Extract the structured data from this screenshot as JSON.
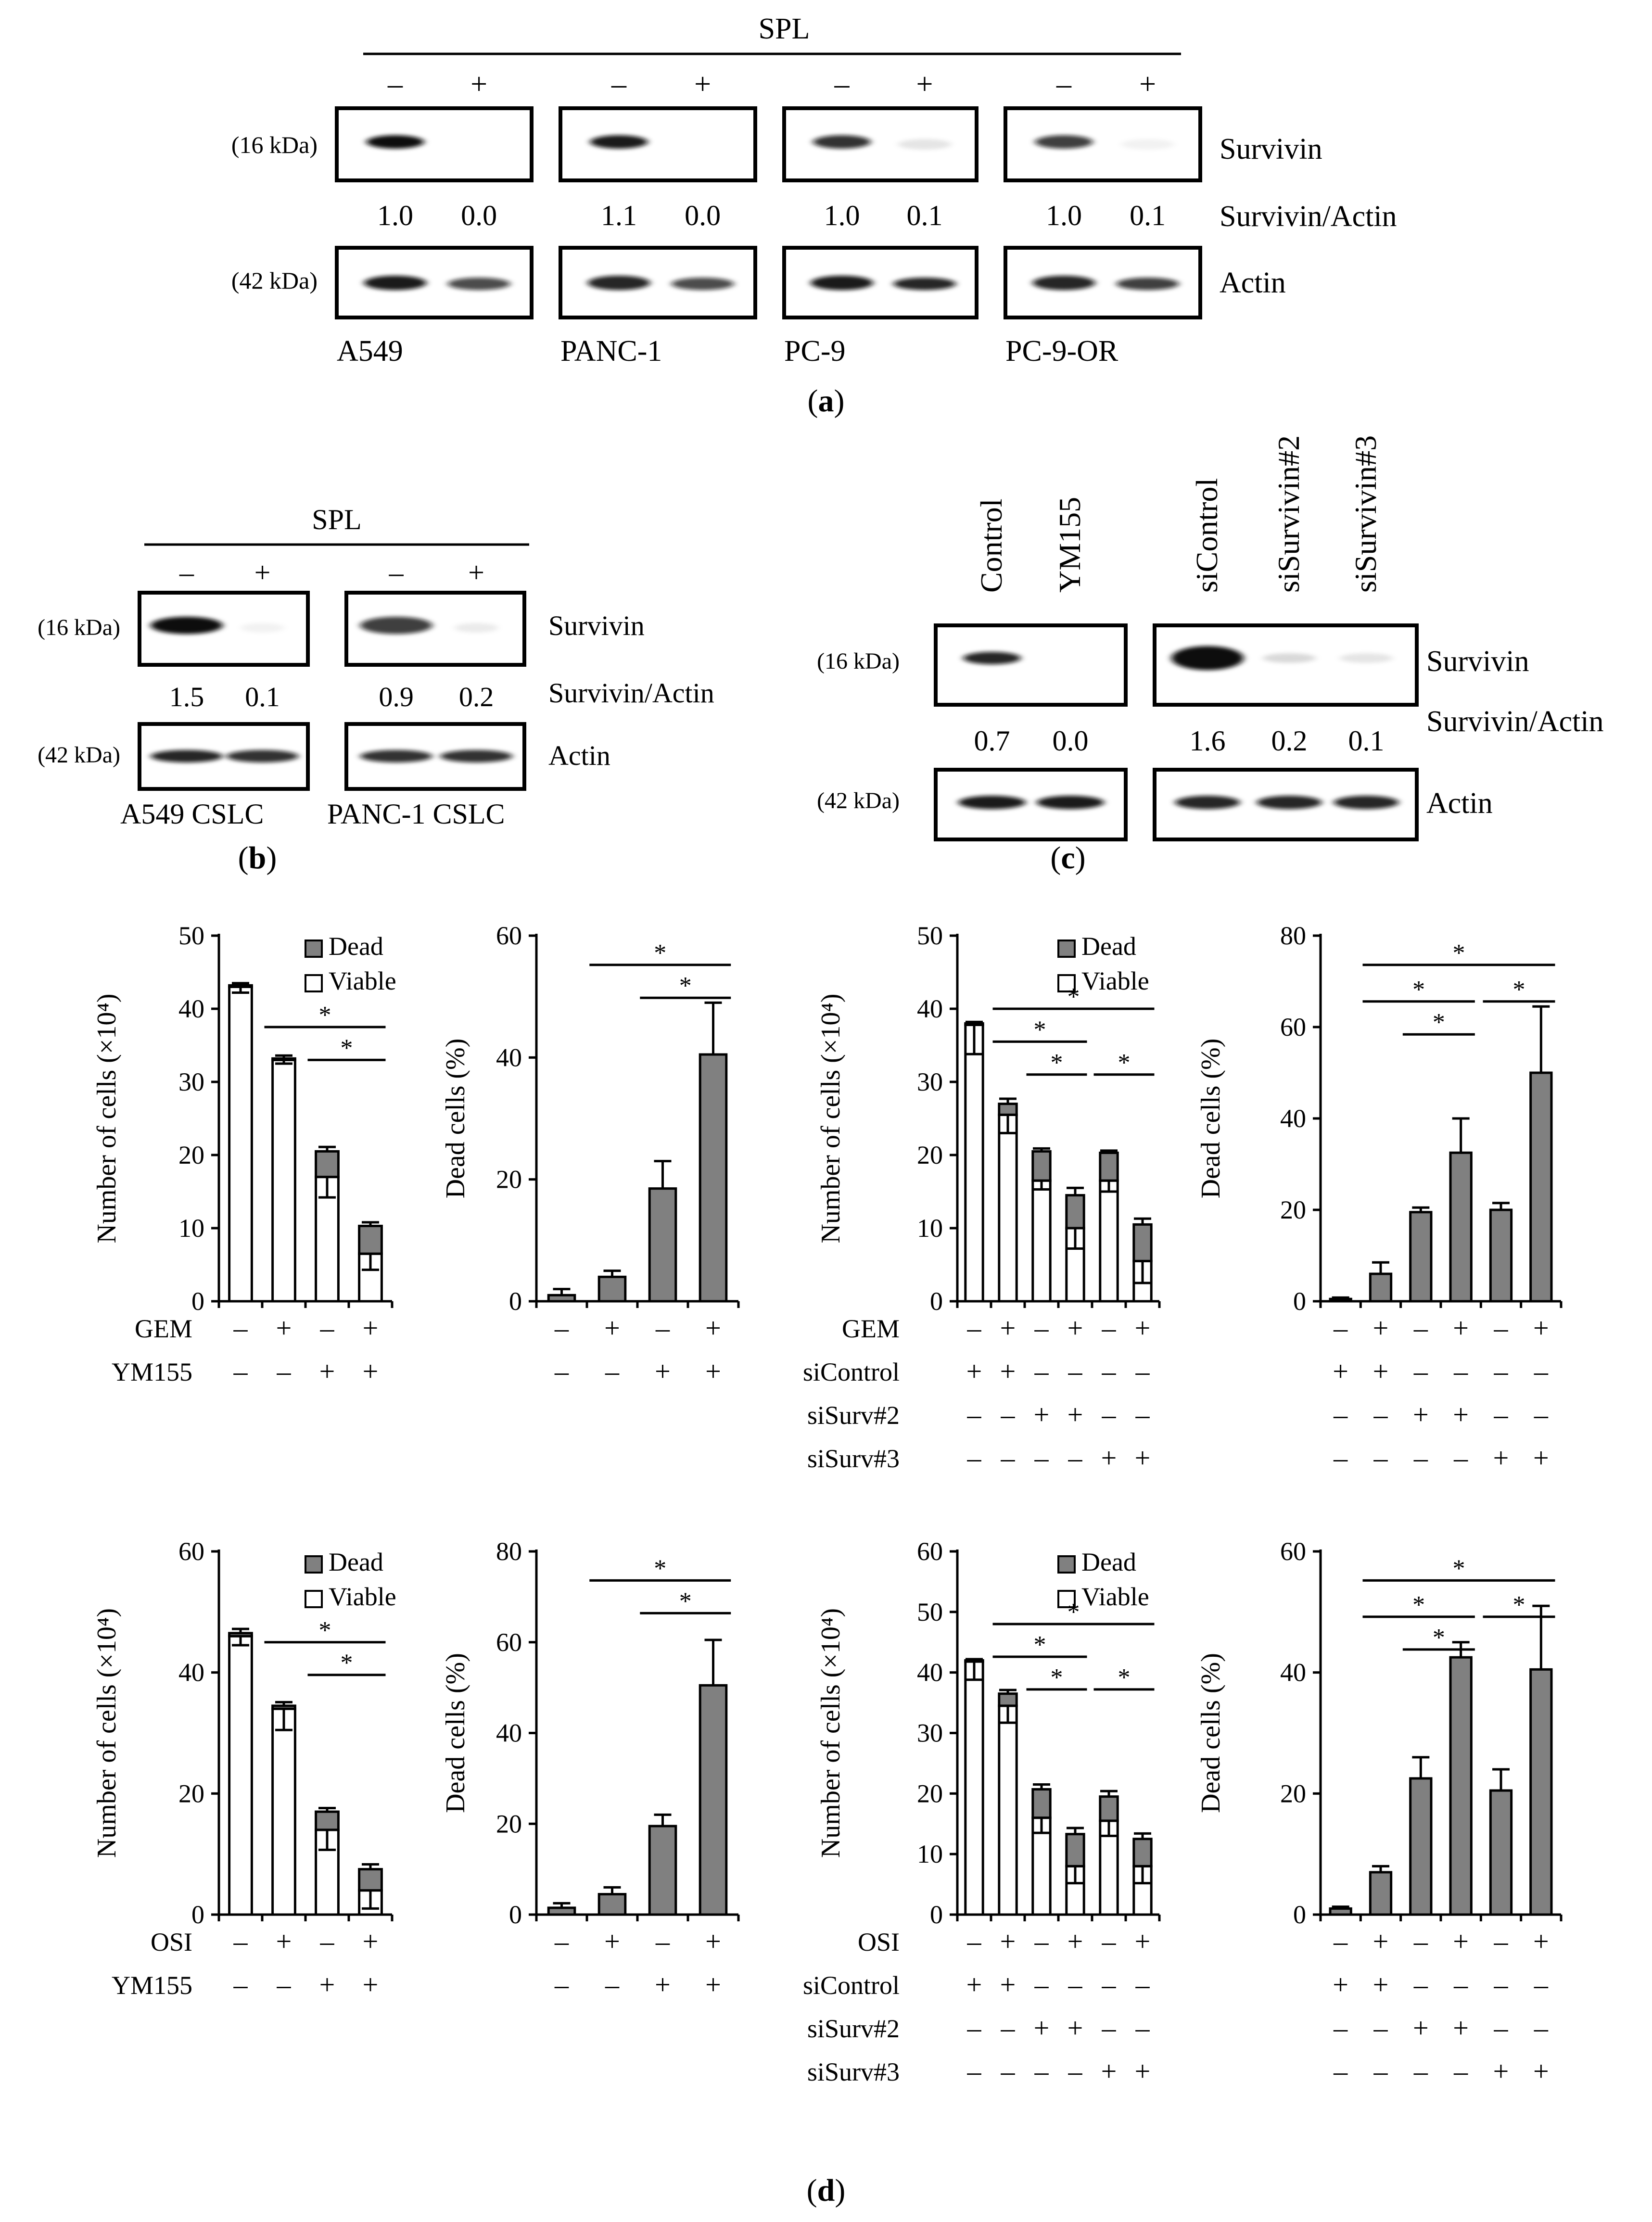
{
  "colors": {
    "ink": "#000000",
    "dead_fill": "#808080",
    "viable_fill": "#ffffff",
    "blot_background": "#ffffff",
    "band_dark": "#111111"
  },
  "panel_a": {
    "label_open": "(",
    "label_letter": "a",
    "label_close": ")",
    "spl_label": "SPL",
    "lane_minus": "–",
    "lane_plus": "+",
    "marker_top": "(16 kDa)",
    "marker_bottom": "(42 kDa)",
    "protein_top": "Survivin",
    "ratio_label": "Survivin/Actin",
    "protein_bottom": "Actin",
    "cell_lines": [
      "A549",
      "PANC-1",
      "PC-9",
      "PC-9-OR"
    ],
    "ratios": [
      [
        "1.0",
        "0.0"
      ],
      [
        "1.1",
        "0.0"
      ],
      [
        "1.0",
        "0.1"
      ],
      [
        "1.0",
        "0.1"
      ]
    ],
    "survivin_band_intensity": [
      [
        1.0,
        0.0
      ],
      [
        0.95,
        0.0
      ],
      [
        0.85,
        0.1
      ],
      [
        0.8,
        0.05
      ]
    ],
    "actin_band_intensity": [
      [
        0.95,
        0.75
      ],
      [
        0.9,
        0.75
      ],
      [
        0.95,
        0.9
      ],
      [
        0.9,
        0.8
      ]
    ]
  },
  "panel_b": {
    "label_open": "(",
    "label_letter": "b",
    "label_close": ")",
    "spl_label": "SPL",
    "lane_minus": "–",
    "lane_plus": "+",
    "marker_top": "(16 kDa)",
    "marker_bottom": "(42 kDa)",
    "protein_top": "Survivin",
    "ratio_label": "Survivin/Actin",
    "protein_bottom": "Actin",
    "cell_lines": [
      "A549 CSLC",
      "PANC-1 CSLC"
    ],
    "ratios": [
      [
        "1.5",
        "0.1"
      ],
      [
        "0.9",
        "0.2"
      ]
    ],
    "survivin_band_intensity": [
      [
        1.0,
        0.05
      ],
      [
        0.8,
        0.08
      ]
    ],
    "actin_band_intensity": [
      [
        0.9,
        0.85
      ],
      [
        0.85,
        0.85
      ]
    ]
  },
  "panel_c": {
    "label_open": "(",
    "label_letter": "c",
    "label_close": ")",
    "lanes_left": [
      "Control",
      "YM155"
    ],
    "lanes_right": [
      "siControl",
      "siSurvivin#2",
      "siSurvivin#3"
    ],
    "marker_top": "(16 kDa)",
    "marker_bottom": "(42 kDa)",
    "protein_top": "Survivin",
    "ratio_label": "Survivin/Actin",
    "protein_bottom": "Actin",
    "ratios_left": [
      "0.7",
      "0.0"
    ],
    "ratios_right": [
      "1.6",
      "0.2",
      "0.1"
    ],
    "survivin_band_intensity_left": [
      0.9,
      0.0
    ],
    "survivin_band_intensity_right": [
      1.0,
      0.15,
      0.1
    ],
    "actin_band_intensity_left": [
      0.95,
      0.95
    ],
    "actin_band_intensity_right": [
      0.9,
      0.9,
      0.9
    ]
  },
  "panel_d": {
    "label_open": "(",
    "label_letter": "d",
    "label_close": ")"
  },
  "chart_data": [
    {
      "id": "d-gem-ym155-count",
      "type": "bar",
      "stacked": true,
      "ylabel": "Number of cells (×10⁴)",
      "ylim": [
        0,
        50
      ],
      "yticks": [
        0,
        10,
        20,
        30,
        40,
        50
      ],
      "legend": [
        "Dead",
        "Viable"
      ],
      "series": [
        {
          "name": "Viable",
          "values": [
            43,
            33,
            17,
            6.5
          ]
        },
        {
          "name": "Dead",
          "values": [
            0.2,
            0.2,
            3.5,
            3.8
          ]
        }
      ],
      "viable_error": [
        0.8,
        0.5,
        2.8,
        2.2
      ],
      "total_error": [
        0.3,
        0.4,
        0.6,
        0.5
      ],
      "significance": [
        {
          "from": 1,
          "to": 3,
          "label": "*"
        },
        {
          "from": 2,
          "to": 3,
          "label": "*"
        }
      ],
      "treatments": [
        {
          "label": "GEM",
          "signs": [
            "–",
            "+",
            "–",
            "+"
          ]
        },
        {
          "label": "YM155",
          "signs": [
            "–",
            "–",
            "+",
            "+"
          ]
        }
      ]
    },
    {
      "id": "d-gem-ym155-dead",
      "type": "bar",
      "ylabel": "Dead cells (%)",
      "ylim": [
        0,
        60
      ],
      "yticks": [
        0,
        20,
        40,
        60
      ],
      "values": [
        1,
        4,
        18.5,
        40.5
      ],
      "errors": [
        1,
        1,
        4.5,
        8.5
      ],
      "significance": [
        {
          "from": 1,
          "to": 3,
          "label": "*"
        },
        {
          "from": 2,
          "to": 3,
          "label": "*"
        }
      ],
      "treatments": [
        {
          "label": "",
          "signs": [
            "–",
            "+",
            "–",
            "+"
          ]
        },
        {
          "label": "",
          "signs": [
            "–",
            "–",
            "+",
            "+"
          ]
        }
      ]
    },
    {
      "id": "d-gem-sisurv-count",
      "type": "bar",
      "stacked": true,
      "ylabel": "Number of cells (×10⁴)",
      "ylim": [
        0,
        50
      ],
      "yticks": [
        0,
        10,
        20,
        30,
        40,
        50
      ],
      "legend": [
        "Dead",
        "Viable"
      ],
      "series": [
        {
          "name": "Viable",
          "values": [
            37.8,
            25.5,
            16.5,
            10,
            16.5,
            5.5
          ]
        },
        {
          "name": "Dead",
          "values": [
            0.2,
            1.5,
            4,
            4.5,
            3.8,
            5
          ]
        }
      ],
      "viable_error": [
        4,
        2.5,
        1.2,
        2.8,
        1.5,
        3
      ],
      "total_error": [
        0.2,
        0.7,
        0.4,
        1,
        0.3,
        0.8
      ],
      "significance": [
        {
          "from": 1,
          "to": 5,
          "label": "*"
        },
        {
          "from": 1,
          "to": 3,
          "label": "*"
        },
        {
          "from": 2,
          "to": 3,
          "label": "*"
        },
        {
          "from": 4,
          "to": 5,
          "label": "*"
        }
      ],
      "treatments": [
        {
          "label": "GEM",
          "signs": [
            "–",
            "+",
            "–",
            "+",
            "–",
            "+"
          ]
        },
        {
          "label": "siControl",
          "signs": [
            "+",
            "+",
            "–",
            "–",
            "–",
            "–"
          ]
        },
        {
          "label": "siSurv#2",
          "signs": [
            "–",
            "–",
            "+",
            "+",
            "–",
            "–"
          ]
        },
        {
          "label": "siSurv#3",
          "signs": [
            "–",
            "–",
            "–",
            "–",
            "+",
            "+"
          ]
        }
      ]
    },
    {
      "id": "d-gem-sisurv-dead",
      "type": "bar",
      "ylabel": "Dead cells (%)",
      "ylim": [
        0,
        80
      ],
      "yticks": [
        0,
        20,
        40,
        60,
        80
      ],
      "values": [
        0.5,
        6,
        19.5,
        32.5,
        20,
        50
      ],
      "errors": [
        0.3,
        2.5,
        1,
        7.5,
        1.5,
        14.5
      ],
      "significance": [
        {
          "from": 1,
          "to": 5,
          "label": "*"
        },
        {
          "from": 1,
          "to": 3,
          "label": "*"
        },
        {
          "from": 2,
          "to": 3,
          "label": "*"
        },
        {
          "from": 4,
          "to": 5,
          "label": "*"
        }
      ],
      "treatments": [
        {
          "label": "",
          "signs": [
            "–",
            "+",
            "–",
            "+",
            "–",
            "+"
          ]
        },
        {
          "label": "",
          "signs": [
            "+",
            "+",
            "–",
            "–",
            "–",
            "–"
          ]
        },
        {
          "label": "",
          "signs": [
            "–",
            "–",
            "+",
            "+",
            "–",
            "–"
          ]
        },
        {
          "label": "",
          "signs": [
            "–",
            "–",
            "–",
            "–",
            "+",
            "+"
          ]
        }
      ]
    },
    {
      "id": "d-osi-ym155-count",
      "type": "bar",
      "stacked": true,
      "ylabel": "Number of cells (×10⁴)",
      "ylim": [
        0,
        60
      ],
      "yticks": [
        0,
        20,
        40,
        60
      ],
      "legend": [
        "Dead",
        "Viable"
      ],
      "series": [
        {
          "name": "Viable",
          "values": [
            46,
            34,
            14,
            4
          ]
        },
        {
          "name": "Dead",
          "values": [
            0.5,
            0.5,
            3,
            3.5
          ]
        }
      ],
      "viable_error": [
        1.5,
        3.5,
        3.3,
        3
      ],
      "total_error": [
        0.7,
        0.6,
        0.6,
        0.8
      ],
      "significance": [
        {
          "from": 1,
          "to": 3,
          "label": "*"
        },
        {
          "from": 2,
          "to": 3,
          "label": "*"
        }
      ],
      "treatments": [
        {
          "label": "OSI",
          "signs": [
            "–",
            "+",
            "–",
            "+"
          ]
        },
        {
          "label": "YM155",
          "signs": [
            "–",
            "–",
            "+",
            "+"
          ]
        }
      ]
    },
    {
      "id": "d-osi-ym155-dead",
      "type": "bar",
      "ylabel": "Dead cells (%)",
      "ylim": [
        0,
        80
      ],
      "yticks": [
        0,
        20,
        40,
        60,
        80
      ],
      "values": [
        1.5,
        4.5,
        19.5,
        50.5
      ],
      "errors": [
        1,
        1.5,
        2.5,
        10
      ],
      "significance": [
        {
          "from": 1,
          "to": 3,
          "label": "*"
        },
        {
          "from": 2,
          "to": 3,
          "label": "*"
        }
      ],
      "treatments": [
        {
          "label": "",
          "signs": [
            "–",
            "+",
            "–",
            "+"
          ]
        },
        {
          "label": "",
          "signs": [
            "–",
            "–",
            "+",
            "+"
          ]
        }
      ]
    },
    {
      "id": "d-osi-sisurv-count",
      "type": "bar",
      "stacked": true,
      "ylabel": "Number of cells (×10⁴)",
      "ylim": [
        0,
        60
      ],
      "yticks": [
        0,
        10,
        20,
        30,
        40,
        50,
        60
      ],
      "legend": [
        "Dead",
        "Viable"
      ],
      "series": [
        {
          "name": "Viable",
          "values": [
            41.8,
            34.5,
            16,
            8,
            15.5,
            8
          ]
        },
        {
          "name": "Dead",
          "values": [
            0.2,
            2,
            4.7,
            5.3,
            4,
            4.5
          ]
        }
      ],
      "viable_error": [
        3,
        2.8,
        2.5,
        2.8,
        2.5,
        2.8
      ],
      "total_error": [
        0.2,
        0.6,
        0.8,
        1,
        0.9,
        0.9
      ],
      "significance": [
        {
          "from": 1,
          "to": 5,
          "label": "*"
        },
        {
          "from": 1,
          "to": 3,
          "label": "*"
        },
        {
          "from": 2,
          "to": 3,
          "label": "*"
        },
        {
          "from": 4,
          "to": 5,
          "label": "*"
        }
      ],
      "treatments": [
        {
          "label": "OSI",
          "signs": [
            "–",
            "+",
            "–",
            "+",
            "–",
            "+"
          ]
        },
        {
          "label": "siControl",
          "signs": [
            "+",
            "+",
            "–",
            "–",
            "–",
            "–"
          ]
        },
        {
          "label": "siSurv#2",
          "signs": [
            "–",
            "–",
            "+",
            "+",
            "–",
            "–"
          ]
        },
        {
          "label": "siSurv#3",
          "signs": [
            "–",
            "–",
            "–",
            "–",
            "+",
            "+"
          ]
        }
      ]
    },
    {
      "id": "d-osi-sisurv-dead",
      "type": "bar",
      "ylabel": "Dead cells (%)",
      "ylim": [
        0,
        60
      ],
      "yticks": [
        0,
        20,
        40,
        60
      ],
      "values": [
        1,
        7,
        22.5,
        42.5,
        20.5,
        40.5
      ],
      "errors": [
        0.3,
        1,
        3.5,
        2.5,
        3.5,
        10.5
      ],
      "significance": [
        {
          "from": 1,
          "to": 5,
          "label": "*"
        },
        {
          "from": 1,
          "to": 3,
          "label": "*"
        },
        {
          "from": 2,
          "to": 3,
          "label": "*"
        },
        {
          "from": 4,
          "to": 5,
          "label": "*"
        }
      ],
      "treatments": [
        {
          "label": "",
          "signs": [
            "–",
            "+",
            "–",
            "+",
            "–",
            "+"
          ]
        },
        {
          "label": "",
          "signs": [
            "+",
            "+",
            "–",
            "–",
            "–",
            "–"
          ]
        },
        {
          "label": "",
          "signs": [
            "–",
            "–",
            "+",
            "+",
            "–",
            "–"
          ]
        },
        {
          "label": "",
          "signs": [
            "–",
            "–",
            "–",
            "–",
            "+",
            "+"
          ]
        }
      ]
    }
  ]
}
